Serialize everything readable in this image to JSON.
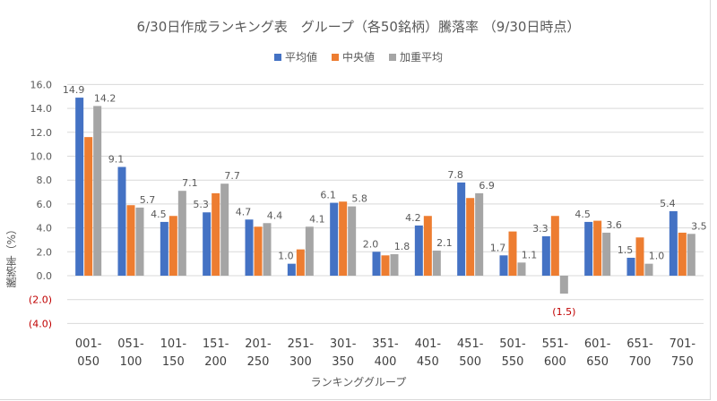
{
  "chart_data": {
    "type": "bar",
    "title": "6/30日作成ランキング表　グループ（各50銘柄）騰落率 （9/30日時点）",
    "xlabel": "ランキンググループ",
    "ylabel": "騰落率（%）",
    "ylim": [
      -4.0,
      16.0
    ],
    "yticks": [
      "(4.0)",
      "(2.0)",
      "0.0",
      "2.0",
      "4.0",
      "6.0",
      "8.0",
      "10.0",
      "12.0",
      "14.0",
      "16.0"
    ],
    "ytick_values": [
      -4,
      -2,
      0,
      2,
      4,
      6,
      8,
      10,
      12,
      14,
      16
    ],
    "grid": true,
    "legend_position": "top",
    "categories": [
      "001-050",
      "051-100",
      "101-150",
      "151-200",
      "201-250",
      "251-300",
      "301-350",
      "351-400",
      "401-450",
      "451-500",
      "501-550",
      "551-600",
      "601-650",
      "651-700",
      "701-750"
    ],
    "series": [
      {
        "name": "平均値",
        "color": "#4472c4",
        "values": [
          14.9,
          9.1,
          4.5,
          5.3,
          4.7,
          1.0,
          6.1,
          2.0,
          4.2,
          7.8,
          1.7,
          3.3,
          4.5,
          1.5,
          5.4
        ],
        "labeled": true
      },
      {
        "name": "中央値",
        "color": "#ed7d31",
        "values": [
          11.6,
          5.9,
          5.0,
          6.9,
          4.1,
          2.2,
          6.2,
          1.7,
          5.0,
          6.5,
          3.7,
          5.0,
          4.6,
          3.2,
          3.6
        ],
        "labeled": false
      },
      {
        "name": "加重平均",
        "color": "#a5a5a5",
        "values": [
          14.2,
          5.7,
          7.1,
          7.7,
          4.4,
          4.1,
          5.8,
          1.8,
          2.1,
          6.9,
          1.1,
          -1.5,
          3.6,
          1.0,
          3.5
        ],
        "labeled": true
      }
    ],
    "negative_label_color": "#c00000"
  }
}
